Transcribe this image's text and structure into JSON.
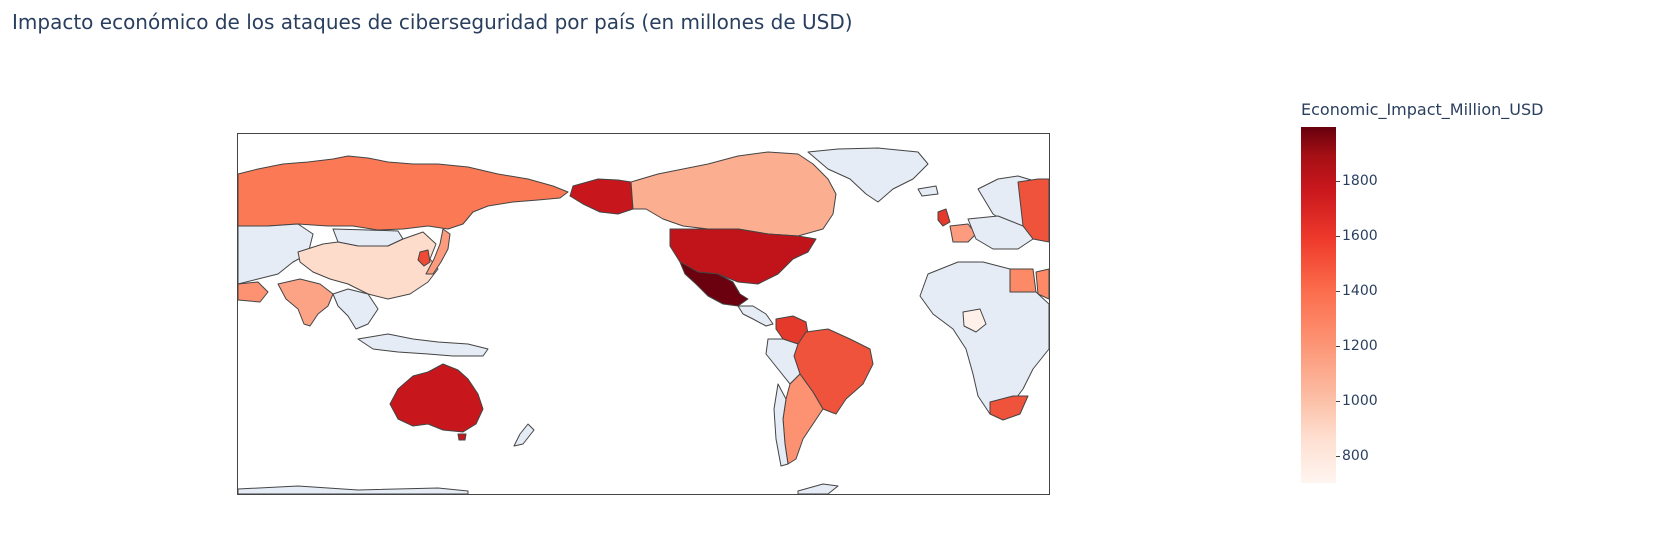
{
  "title": "Impacto económico de los ataques de ciberseguridad por país (en millones de USD)",
  "colorbar": {
    "title": "Economic_Impact_Million_USD",
    "ticks": [
      "1800",
      "1600",
      "1400",
      "1200",
      "1000",
      "800"
    ],
    "colorscale": "Reds",
    "no_data_color": "#e5ecf6",
    "border_color": "#444444"
  }
}
